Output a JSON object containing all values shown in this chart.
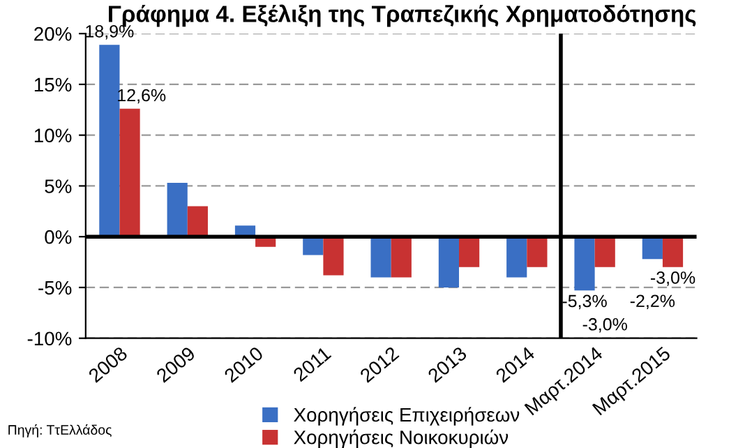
{
  "chart_data": {
    "type": "bar",
    "title": "Γράφημα 4. Εξέλιξη της Τραπεζικής Χρηματοδότησης",
    "categories": [
      "2008",
      "2009",
      "2010",
      "2011",
      "2012",
      "2013",
      "2014",
      "Μαρτ.2014",
      "Μαρτ.2015"
    ],
    "series": [
      {
        "name": "Χορηγήσεις Επιχειρήσεων",
        "color": "#3a6fc4",
        "values": [
          18.9,
          5.3,
          1.1,
          -1.8,
          -4.0,
          -5.0,
          -4.0,
          -5.3,
          -2.2
        ],
        "value_labels": [
          "18,9%",
          null,
          null,
          null,
          null,
          null,
          null,
          "-5,3%",
          "-2,2%"
        ]
      },
      {
        "name": "Χορηγήσεις Νοικοκυριών",
        "color": "#c83232",
        "values": [
          12.6,
          3.0,
          -1.0,
          -3.8,
          -4.0,
          -3.0,
          -3.0,
          -3.0,
          -3.0
        ],
        "value_labels": [
          "12,6%",
          null,
          null,
          null,
          null,
          null,
          null,
          "-3,0%",
          "-3,0%"
        ]
      }
    ],
    "ylim": [
      -10,
      20
    ],
    "yticks": [
      {
        "value": -10,
        "label": "-10%"
      },
      {
        "value": -5,
        "label": "-5%"
      },
      {
        "value": 0,
        "label": "0%"
      },
      {
        "value": 5,
        "label": "5%"
      },
      {
        "value": 10,
        "label": "10%"
      },
      {
        "value": 15,
        "label": "15%"
      },
      {
        "value": 20,
        "label": "20%"
      }
    ],
    "grid": "y",
    "legend": "bottom",
    "annotations": [
      "Πηγή: ΤτΕλλάδος"
    ]
  }
}
